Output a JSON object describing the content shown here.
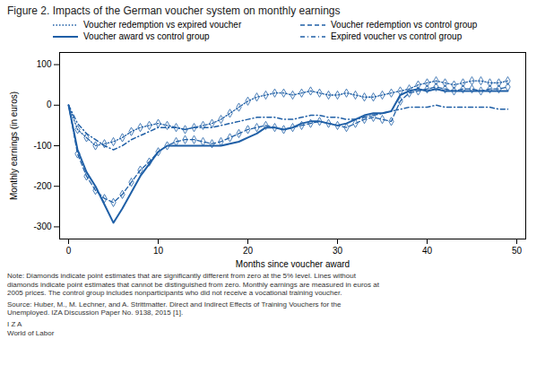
{
  "chart_data": {
    "type": "line",
    "title": "Figure 2. Impacts of the German voucher system on monthly earnings",
    "xlabel": "Months since voucher award",
    "ylabel": "Monthly earnings (in euros)",
    "xlim": [
      -1,
      51
    ],
    "ylim": [
      -330,
      130
    ],
    "xticks": [
      0,
      10,
      20,
      30,
      40,
      50
    ],
    "yticks": [
      -300,
      -200,
      -100,
      0,
      100
    ],
    "legend": "top",
    "grid": false,
    "x": [
      0,
      1,
      2,
      3,
      4,
      5,
      6,
      7,
      8,
      9,
      10,
      11,
      12,
      13,
      14,
      15,
      16,
      17,
      18,
      19,
      20,
      21,
      22,
      23,
      24,
      25,
      26,
      27,
      28,
      29,
      30,
      31,
      32,
      33,
      34,
      35,
      36,
      37,
      38,
      39,
      40,
      41,
      42,
      43,
      44,
      45,
      46,
      47,
      48,
      49
    ],
    "series": [
      {
        "name": "Voucher redemption vs expired voucher",
        "color": "#1f5fa6",
        "line_style": "dotted",
        "marker": "diamond",
        "values": [
          0,
          -60,
          -80,
          -100,
          -95,
          -90,
          -80,
          -65,
          -55,
          -50,
          -45,
          -50,
          -55,
          -60,
          -55,
          -50,
          -45,
          -35,
          -20,
          -5,
          10,
          20,
          25,
          30,
          30,
          25,
          30,
          35,
          30,
          25,
          25,
          30,
          25,
          20,
          20,
          25,
          30,
          35,
          40,
          50,
          55,
          60,
          55,
          50,
          55,
          60,
          60,
          55,
          55,
          60
        ],
        "significant_x": [
          1,
          2,
          3,
          4,
          5,
          6,
          7,
          8,
          9,
          10,
          11,
          12,
          13,
          14,
          15,
          16,
          17,
          18,
          19,
          20,
          21,
          22,
          23,
          24,
          25,
          26,
          27,
          28,
          29,
          30,
          31,
          32,
          33,
          34,
          35,
          36,
          37,
          38,
          39,
          40,
          41,
          42,
          43,
          44,
          45,
          46,
          47,
          48,
          49
        ]
      },
      {
        "name": "Voucher redemption vs control group",
        "color": "#1f5fa6",
        "line_style": "dashed",
        "marker": "diamond",
        "values": [
          0,
          -120,
          -175,
          -210,
          -230,
          -240,
          -220,
          -190,
          -160,
          -140,
          -115,
          -100,
          -90,
          -85,
          -85,
          -90,
          -95,
          -90,
          -80,
          -70,
          -60,
          -55,
          -50,
          -55,
          -60,
          -55,
          -50,
          -45,
          -40,
          -45,
          -50,
          -55,
          -45,
          -35,
          -30,
          -35,
          -40,
          10,
          30,
          35,
          40,
          45,
          40,
          35,
          40,
          40,
          35,
          40,
          40,
          45
        ],
        "significant_x": [
          1,
          2,
          3,
          4,
          5,
          6,
          7,
          8,
          9,
          10,
          11,
          12,
          13,
          14,
          15,
          16,
          17,
          18,
          19,
          20,
          21,
          22,
          23,
          24,
          25,
          26,
          27,
          28,
          29,
          30,
          31,
          32,
          33,
          34,
          35,
          36,
          37,
          38,
          39,
          40,
          41,
          42,
          43,
          44,
          45,
          46,
          47,
          48,
          49
        ]
      },
      {
        "name": "Voucher award vs control group",
        "color": "#1f5fa6",
        "line_style": "solid",
        "values": [
          0,
          -110,
          -165,
          -200,
          -245,
          -290,
          -255,
          -215,
          -175,
          -145,
          -115,
          -100,
          -100,
          -100,
          -100,
          -100,
          -100,
          -100,
          -95,
          -90,
          -80,
          -70,
          -55,
          -55,
          -60,
          -55,
          -45,
          -40,
          -40,
          -45,
          -50,
          -45,
          -35,
          -25,
          -20,
          -20,
          -15,
          25,
          35,
          40,
          35,
          40,
          35,
          35,
          35,
          35,
          35,
          35,
          35,
          35
        ]
      },
      {
        "name": "Expired voucher vs control group",
        "color": "#1f5fa6",
        "line_style": "dashdot",
        "values": [
          0,
          -45,
          -70,
          -85,
          -100,
          -110,
          -100,
          -85,
          -75,
          -65,
          -55,
          -55,
          -55,
          -60,
          -55,
          -55,
          -55,
          -50,
          -45,
          -40,
          -35,
          -30,
          -30,
          -30,
          -35,
          -35,
          -30,
          -25,
          -25,
          -30,
          -30,
          -35,
          -35,
          -30,
          -25,
          -20,
          -15,
          -10,
          -5,
          -5,
          -5,
          0,
          -5,
          -5,
          -5,
          -5,
          -5,
          -5,
          -10,
          -10
        ]
      }
    ],
    "annotations": [
      "Note: Diamonds indicate point estimates that are significantly different from zero at the 5% level. Lines without\ndiamonds indicate point estimates that cannot be distinguished from zero. Monthly earnings are measured in euros at\n2005 prices. The control group includes nonparticipants who did not receive a vocational training voucher.",
      "Source: Huber, M., M. Lechner, and A. Strittmatter. Direct and Indirect Effects of Training Vouchers for the\nUnemployed. IZA Discussion Paper No. 9138, 2015 [1].",
      "I Z A\nWorld of Labor"
    ]
  }
}
